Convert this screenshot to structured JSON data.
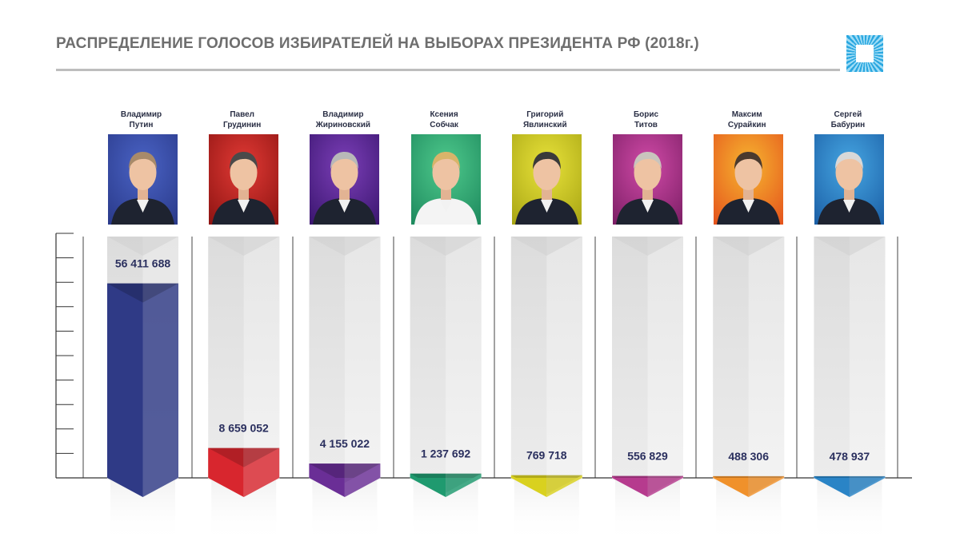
{
  "title": "РАСПРЕДЕЛЕНИЕ ГОЛОСОВ ИЗБИРАТЕЛЕЙ НА ВЫБОРАХ ПРЕЗИДЕНТА РФ (2018г.)",
  "logo_icon": "square-burst-logo-icon",
  "chart_data": {
    "type": "bar",
    "categories": [
      "Владимир Путин",
      "Павел Грудинин",
      "Владимир Жириновский",
      "Ксения Собчак",
      "Григорий Явлинский",
      "Борис Титов",
      "Максим Сурайкин",
      "Сергей Бабурин"
    ],
    "values": [
      56411688,
      8659052,
      4155022,
      1237692,
      769718,
      556829,
      488306,
      478937
    ],
    "value_labels": [
      "56 411 688",
      "8 659 052",
      "4 155 022",
      "1 237 692",
      "769 718",
      "556 829",
      "488 306",
      "478 937"
    ],
    "ylim": [
      0,
      70000000
    ],
    "grid": false,
    "colors": [
      "#2f3a86",
      "#d8262e",
      "#6a2e96",
      "#1f9a6f",
      "#d9d11f",
      "#b63b8e",
      "#f0912b",
      "#2a84c6"
    ]
  },
  "candidates": [
    {
      "first": "Владимир",
      "last": "Путин",
      "bg": "#4a63c5",
      "bg2": "#2a3a8a",
      "portrait_icon": "portrait-putin"
    },
    {
      "first": "Павел",
      "last": "Грудинин",
      "bg": "#e23a35",
      "bg2": "#8e1412",
      "portrait_icon": "portrait-grudinin"
    },
    {
      "first": "Владимир",
      "last": "Жириновский",
      "bg": "#7c3fb8",
      "bg2": "#3b1670",
      "portrait_icon": "portrait-zhirinovsky"
    },
    {
      "first": "Ксения",
      "last": "Собчак",
      "bg": "#4ec98c",
      "bg2": "#1e8a5e",
      "portrait_icon": "portrait-sobchak"
    },
    {
      "first": "Григорий",
      "last": "Явлинский",
      "bg": "#e8e23a",
      "bg2": "#a9a614",
      "portrait_icon": "portrait-yavlinsky"
    },
    {
      "first": "Борис",
      "last": "Титов",
      "bg": "#d04aa7",
      "bg2": "#7d1f66",
      "portrait_icon": "portrait-titov"
    },
    {
      "first": "Максим",
      "last": "Сурайкин",
      "bg": "#f6b530",
      "bg2": "#e5541c",
      "portrait_icon": "portrait-suraykin"
    },
    {
      "first": "Сергей",
      "last": "Бабурин",
      "bg": "#46a6e2",
      "bg2": "#1b5fa6",
      "portrait_icon": "portrait-baburin"
    }
  ]
}
